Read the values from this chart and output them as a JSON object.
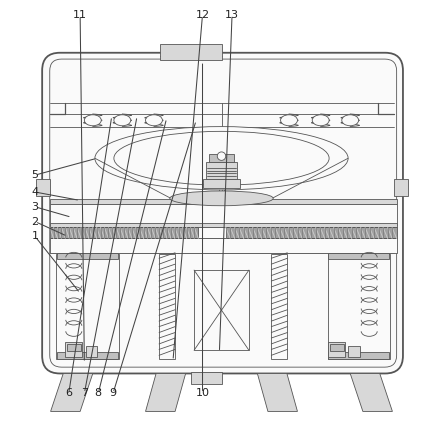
{
  "bg_color": "#ffffff",
  "line_color": "#555555",
  "mid_gray": "#888888",
  "fill_gray": "#d8d8d8",
  "fill_mid": "#c0c0c0",
  "fill_light": "#efefef",
  "fill_white": "#fafafa",
  "annotations": {
    "1": {
      "lp": [
        0.058,
        0.44
      ],
      "tp": [
        0.165,
        0.305
      ]
    },
    "2": {
      "lp": [
        0.058,
        0.475
      ],
      "tp": [
        0.135,
        0.44
      ]
    },
    "3": {
      "lp": [
        0.058,
        0.51
      ],
      "tp": [
        0.145,
        0.485
      ]
    },
    "4": {
      "lp": [
        0.058,
        0.545
      ],
      "tp": [
        0.165,
        0.525
      ]
    },
    "5": {
      "lp": [
        0.058,
        0.585
      ],
      "tp": [
        0.205,
        0.625
      ]
    },
    "6": {
      "lp": [
        0.138,
        0.068
      ],
      "tp": [
        0.24,
        0.725
      ]
    },
    "7": {
      "lp": [
        0.175,
        0.068
      ],
      "tp": [
        0.3,
        0.725
      ]
    },
    "8": {
      "lp": [
        0.208,
        0.068
      ],
      "tp": [
        0.37,
        0.72
      ]
    },
    "9": {
      "lp": [
        0.243,
        0.068
      ],
      "tp": [
        0.44,
        0.715
      ]
    },
    "10": {
      "lp": [
        0.455,
        0.068
      ],
      "tp": [
        0.455,
        0.855
      ]
    },
    "11": {
      "lp": [
        0.165,
        0.965
      ],
      "tp": [
        0.175,
        0.14
      ]
    },
    "12": {
      "lp": [
        0.455,
        0.965
      ],
      "tp": [
        0.385,
        0.145
      ]
    },
    "13": {
      "lp": [
        0.525,
        0.965
      ],
      "tp": [
        0.495,
        0.165
      ]
    }
  }
}
